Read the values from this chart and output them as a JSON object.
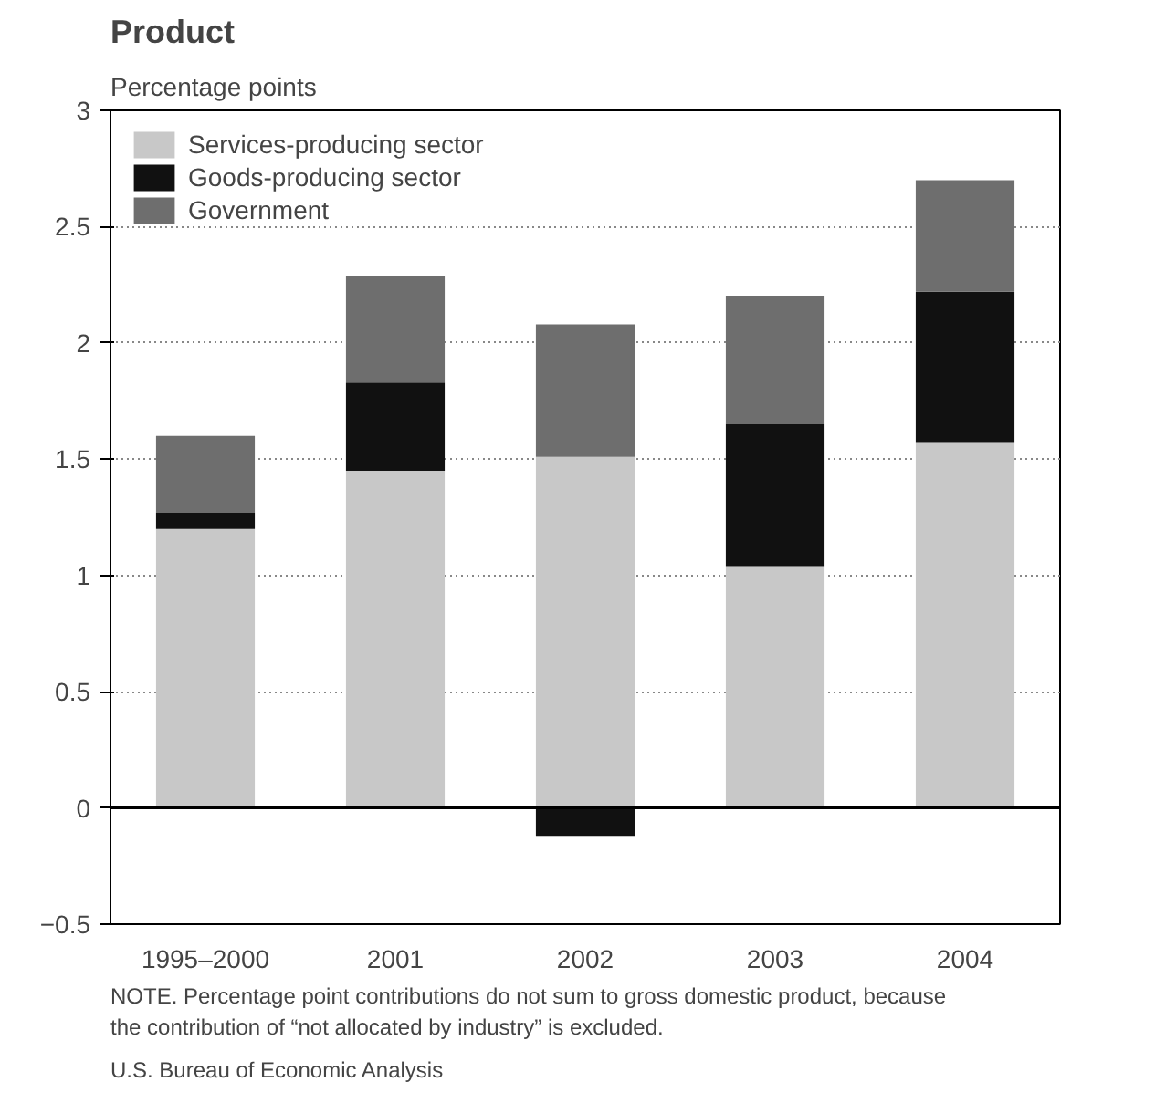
{
  "chart_data": {
    "type": "bar",
    "title": "Product",
    "ylabel": "Percentage points",
    "stacked": true,
    "categories": [
      "1995–2000",
      "2001",
      "2002",
      "2003",
      "2004"
    ],
    "series": [
      {
        "name": "Services-producing sector",
        "color": "#c8c8c8",
        "values": [
          1.2,
          1.45,
          1.51,
          1.04,
          1.57
        ]
      },
      {
        "name": "Goods-producing sector",
        "color": "#111111",
        "values": [
          0.07,
          0.38,
          -0.12,
          0.61,
          0.65
        ]
      },
      {
        "name": "Government",
        "color": "#6e6e6e",
        "values": [
          0.33,
          0.46,
          0.57,
          0.55,
          0.48
        ]
      }
    ],
    "ylim": [
      -0.5,
      3.0
    ],
    "yticks": [
      {
        "value": -0.5,
        "label": "−0.5"
      },
      0,
      0.5,
      1.0,
      1.5,
      2.0,
      2.5,
      3.0
    ],
    "ref_lines": [
      {
        "axis": "y",
        "value": 0,
        "color": "#000000",
        "line_style": "solid"
      }
    ],
    "grid": "y",
    "legend": "top left",
    "annotations": [
      "NOTE. Percentage point contributions do not sum to gross domestic product, because",
      "the contribution of “not allocated by industry” is excluded.",
      "U.S. Bureau of Economic Analysis"
    ]
  }
}
